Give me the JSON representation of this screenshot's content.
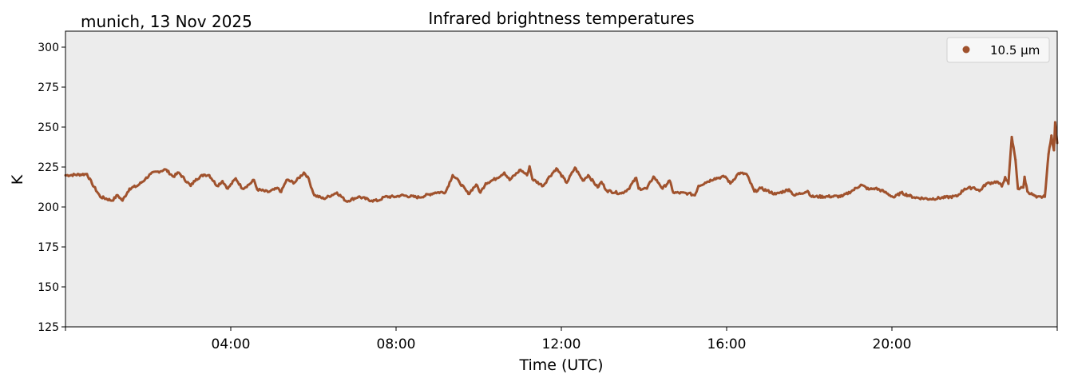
{
  "chart_data": {
    "type": "line",
    "title": "Infrared brightness temperatures",
    "subtitle": "munich, 13 Nov 2025",
    "xlabel": "Time (UTC)",
    "ylabel": "K",
    "xlim_hours": [
      0,
      24
    ],
    "ylim": [
      125,
      310
    ],
    "yticks": [
      125,
      150,
      175,
      200,
      225,
      250,
      275,
      300
    ],
    "xticks_hours": [
      0,
      4,
      8,
      12,
      16,
      20,
      24
    ],
    "xtick_labels": [
      "",
      "04:00",
      "08:00",
      "12:00",
      "16:00",
      "20:00",
      ""
    ],
    "grid": false,
    "legend_position": "top-right",
    "background_color": "#ececec",
    "series": [
      {
        "name": "10.5 µm",
        "color": "#a0522d",
        "x_hours": [
          0,
          0.52,
          0.64,
          0.84,
          1.13,
          1.26,
          1.38,
          1.55,
          1.74,
          1.93,
          2.06,
          2.42,
          2.61,
          2.74,
          3.03,
          3.16,
          3.35,
          3.48,
          3.67,
          3.8,
          3.93,
          4.12,
          4.28,
          4.44,
          4.56,
          4.64,
          4.9,
          5.15,
          5.22,
          5.35,
          5.54,
          5.77,
          5.86,
          6.02,
          6.25,
          6.57,
          6.8,
          7.09,
          7.41,
          7.57,
          7.73,
          7.98,
          8.12,
          8.56,
          8.95,
          9.2,
          9.37,
          9.53,
          9.75,
          9.94,
          10.04,
          10.17,
          10.43,
          10.62,
          10.75,
          11.01,
          11.17,
          11.23,
          11.3,
          11.56,
          11.68,
          11.88,
          12.13,
          12.33,
          12.52,
          12.65,
          12.88,
          12.97,
          13.1,
          13.45,
          13.62,
          13.81,
          13.87,
          14.07,
          14.23,
          14.36,
          14.45,
          14.62,
          14.71,
          15.07,
          15.23,
          15.32,
          15.48,
          15.71,
          15.97,
          16.09,
          16.29,
          16.48,
          16.67,
          16.83,
          17.19,
          17.51,
          17.64,
          17.96,
          18.06,
          18.8,
          19.06,
          19.25,
          19.44,
          19.6,
          19.8,
          20.05,
          20.22,
          20.54,
          20.92,
          21.57,
          21.76,
          21.99,
          22.12,
          22.28,
          22.54,
          22.66,
          22.74,
          22.82,
          22.9,
          22.99,
          23.05,
          23.18,
          23.21,
          23.28,
          23.5,
          23.7,
          23.79,
          23.86,
          23.92,
          23.95,
          24
        ],
        "values": [
          219.8,
          220.6,
          214.8,
          206.4,
          204,
          207.4,
          204,
          211.5,
          213.2,
          217.4,
          220.7,
          223.5,
          219,
          221.5,
          213.2,
          217.4,
          220.2,
          219.9,
          213.2,
          216.2,
          211.5,
          217.9,
          211.5,
          214,
          216.9,
          211,
          209.4,
          211.7,
          209.4,
          216.9,
          215.2,
          221.5,
          219,
          207.4,
          205.2,
          209,
          203.5,
          206.4,
          204,
          204,
          206.4,
          206.4,
          207.3,
          206,
          209,
          209.4,
          219.9,
          215.7,
          208.2,
          214,
          209,
          214.8,
          217.9,
          221.5,
          216.9,
          223.3,
          219.9,
          225.4,
          217.4,
          213.2,
          217.9,
          224.1,
          215.2,
          224.6,
          216.5,
          219.9,
          212.3,
          215.7,
          210.2,
          208.5,
          211.2,
          218.2,
          211.5,
          211.5,
          219,
          214.8,
          211.5,
          216.5,
          209,
          208.5,
          207.3,
          213.2,
          215.2,
          217.9,
          219,
          214.7,
          221.1,
          220.6,
          209.7,
          211.7,
          208,
          211,
          207.2,
          210,
          206.4,
          206.7,
          210.5,
          213.9,
          211,
          211.7,
          209.7,
          206,
          208.9,
          206,
          205,
          206.7,
          211.4,
          212.2,
          210,
          214.5,
          215.9,
          212.9,
          218.7,
          214.5,
          243.8,
          229.6,
          211.4,
          212.2,
          218.9,
          209.7,
          206,
          206.4,
          233,
          244.7,
          235.5,
          253,
          240
        ]
      }
    ]
  }
}
